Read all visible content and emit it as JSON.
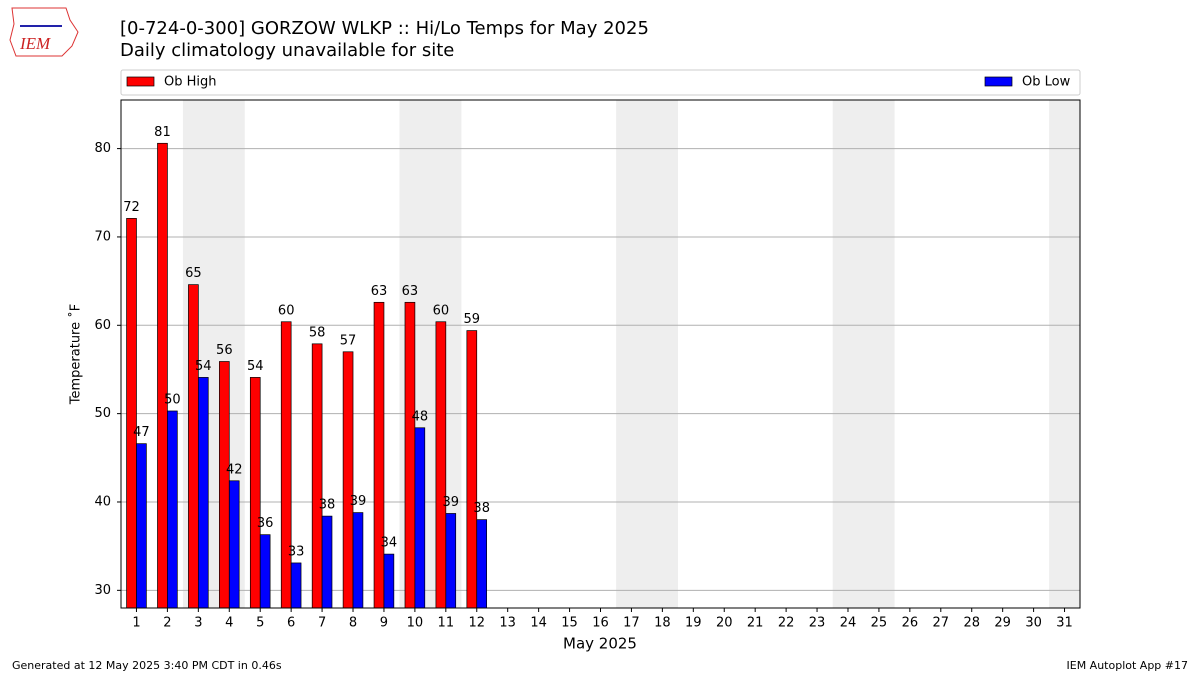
{
  "chart_data": {
    "type": "bar",
    "title": "[0-724-0-300] GORZOW WLKP :: Hi/Lo Temps for May 2025",
    "subtitle": "Daily climatology unavailable for site",
    "x_label": "May 2025",
    "y_label": "Temperature ˚F",
    "categories": [
      "1",
      "2",
      "3",
      "4",
      "5",
      "6",
      "7",
      "8",
      "9",
      "10",
      "11",
      "12",
      "13",
      "14",
      "15",
      "16",
      "17",
      "18",
      "19",
      "20",
      "21",
      "22",
      "23",
      "24",
      "25",
      "26",
      "27",
      "28",
      "29",
      "30",
      "31"
    ],
    "series": [
      {
        "name": "Ob High",
        "color": "#ff0000",
        "values": [
          72.1,
          80.6,
          64.6,
          55.9,
          54.1,
          60.4,
          57.9,
          57.0,
          62.6,
          62.6,
          60.4,
          59.4,
          null,
          null,
          null,
          null,
          null,
          null,
          null,
          null,
          null,
          null,
          null,
          null,
          null,
          null,
          null,
          null,
          null,
          null,
          null
        ],
        "value_labels": [
          "72",
          "81",
          "65",
          "56",
          "54",
          "60",
          "58",
          "57",
          "63",
          "63",
          "60",
          "59",
          null,
          null,
          null,
          null,
          null,
          null,
          null,
          null,
          null,
          null,
          null,
          null,
          null,
          null,
          null,
          null,
          null,
          null,
          null
        ]
      },
      {
        "name": "Ob Low",
        "color": "#0000ff",
        "values": [
          46.6,
          50.3,
          54.1,
          42.4,
          36.3,
          33.1,
          38.4,
          38.8,
          34.1,
          48.4,
          38.7,
          38.0,
          null,
          null,
          null,
          null,
          null,
          null,
          null,
          null,
          null,
          null,
          null,
          null,
          null,
          null,
          null,
          null,
          null,
          null,
          null
        ],
        "value_labels": [
          "47",
          "50",
          "54",
          "42",
          "36",
          "33",
          "38",
          "39",
          "34",
          "48",
          "39",
          "38",
          null,
          null,
          null,
          null,
          null,
          null,
          null,
          null,
          null,
          null,
          null,
          null,
          null,
          null,
          null,
          null,
          null,
          null,
          null
        ]
      }
    ],
    "ylim": [
      28,
      85.5
    ],
    "yticks": [
      30,
      40,
      50,
      60,
      70,
      80
    ],
    "grid": true,
    "legend": "top"
  },
  "footer": {
    "left": "Generated at 12 May 2025 3:40 PM CDT in 0.46s",
    "right": "IEM Autoplot App #17"
  }
}
